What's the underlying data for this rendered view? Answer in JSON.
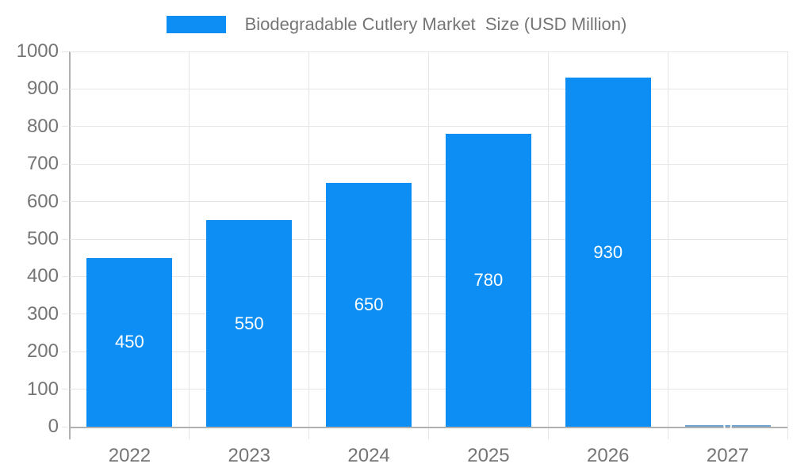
{
  "chart_data": {
    "type": "bar",
    "title": "Biodegradable Cutlery Market  Size (USD Million)",
    "legend_position": "top-center",
    "categories": [
      "2022",
      "2023",
      "2024",
      "2025",
      "2026",
      "2027"
    ],
    "series": [
      {
        "name": "Biodegradable Cutlery Market  Size (USD Million)",
        "values": [
          450,
          550,
          650,
          780,
          930,
          0
        ]
      }
    ],
    "value_labels": [
      "450",
      "550",
      "650",
      "780",
      "930",
      "0"
    ],
    "xlabel": "",
    "ylabel": "",
    "ylim": [
      0,
      1000
    ],
    "ytick_step": 100,
    "yticks": [
      "0",
      "100",
      "200",
      "300",
      "400",
      "500",
      "600",
      "700",
      "800",
      "900",
      "1000"
    ],
    "grid": "both",
    "value_label_position": "inside-center"
  },
  "colors": {
    "bar": "#0d8ef4",
    "bar_zero_line": "#6fa3cf",
    "value_label": "#ffffff",
    "grid_line": "#e5e5e5",
    "axis_line": "#b0b0b0",
    "tick_label": "#757575",
    "legend_text": "#757575",
    "background": "#ffffff"
  }
}
